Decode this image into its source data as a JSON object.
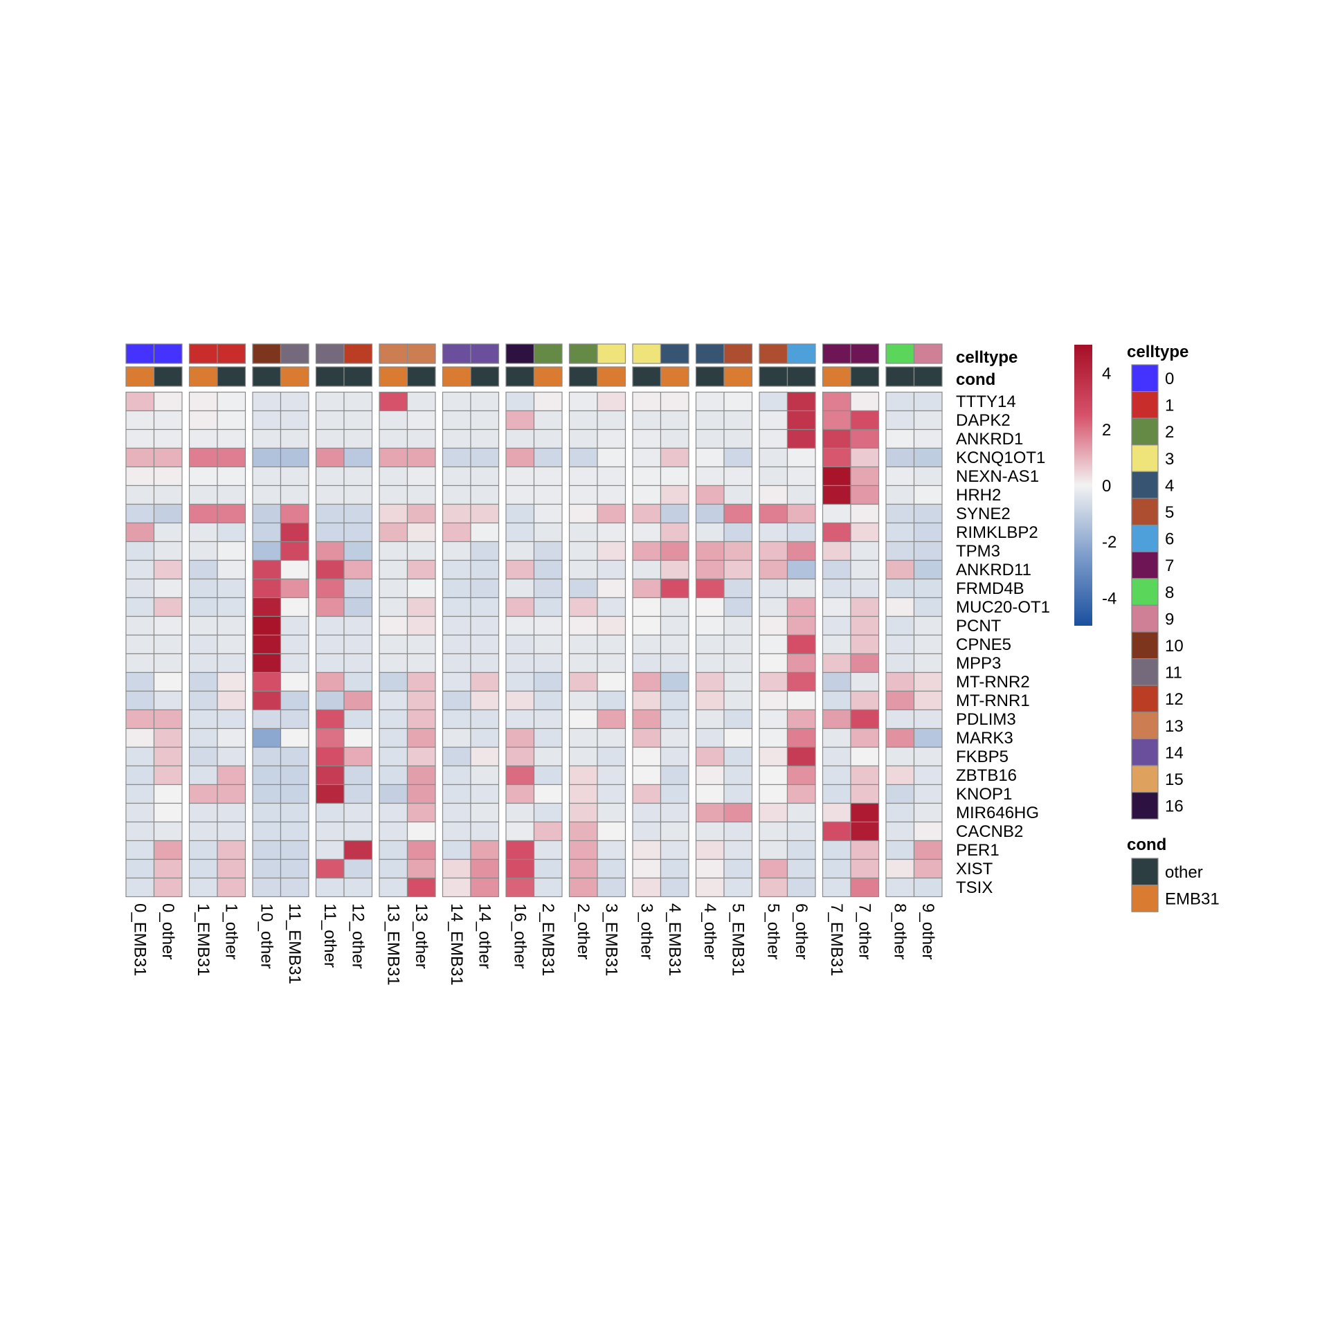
{
  "chart_data": {
    "type": "heatmap",
    "title": "",
    "columns": [
      "0_EMB31",
      "0_other",
      "1_EMB31",
      "1_other",
      "10_other",
      "11_EMB31",
      "11_other",
      "12_other",
      "13_EMB31",
      "13_other",
      "14_EMB31",
      "14_other",
      "16_other",
      "2_EMB31",
      "2_other",
      "3_EMB31",
      "3_other",
      "4_EMB31",
      "4_other",
      "5_EMB31",
      "5_other",
      "6_other",
      "7_EMB31",
      "7_other",
      "8_other",
      "9_other"
    ],
    "column_groups": [
      [
        0,
        1
      ],
      [
        2,
        3
      ],
      [
        4,
        5
      ],
      [
        6,
        7
      ],
      [
        8,
        9
      ],
      [
        10,
        11
      ],
      [
        12,
        13
      ],
      [
        14,
        15
      ],
      [
        16,
        17
      ],
      [
        18,
        19
      ],
      [
        20,
        21
      ],
      [
        22,
        23
      ],
      [
        24,
        25
      ]
    ],
    "rows": [
      "TTTY14",
      "DAPK2",
      "ANKRD1",
      "KCNQ1OT1",
      "NEXN-AS1",
      "HRH2",
      "SYNE2",
      "RIMKLBP2",
      "TPM3",
      "ANKRD11",
      "FRMD4B",
      "MUC20-OT1",
      "PCNT",
      "CPNE5",
      "MPP3",
      "MT-RNR2",
      "MT-RNR1",
      "PDLIM3",
      "MARK3",
      "FKBP5",
      "ZBTB16",
      "KNOP1",
      "MIR646HG",
      "CACNB2",
      "PER1",
      "XIST",
      "TSIX"
    ],
    "values": [
      [
        0.8,
        0.1,
        0.1,
        -0.1,
        -0.4,
        -0.4,
        -0.3,
        -0.3,
        2.5,
        -0.3,
        -0.3,
        -0.3,
        -0.5,
        0.1,
        -0.2,
        0.3,
        0.1,
        0.1,
        -0.2,
        -0.1,
        -0.5,
        3.6,
        1.8,
        0.1,
        -0.5,
        -0.5
      ],
      [
        -0.2,
        -0.2,
        0.1,
        -0.1,
        -0.4,
        -0.4,
        -0.3,
        -0.3,
        -0.3,
        -0.2,
        -0.3,
        -0.3,
        1.0,
        -0.3,
        -0.3,
        -0.3,
        -0.3,
        -0.3,
        -0.3,
        -0.3,
        -0.2,
        3.6,
        1.8,
        2.7,
        -0.4,
        -0.3
      ],
      [
        -0.2,
        -0.2,
        -0.2,
        -0.2,
        -0.3,
        -0.3,
        -0.3,
        -0.3,
        -0.3,
        -0.3,
        -0.3,
        -0.3,
        -0.3,
        -0.3,
        -0.3,
        -0.2,
        -0.2,
        -0.3,
        -0.3,
        -0.3,
        -0.2,
        3.5,
        3.0,
        2.1,
        -0.1,
        -0.2
      ],
      [
        1.0,
        1.0,
        1.8,
        1.8,
        -1.4,
        -1.4,
        1.5,
        -1.2,
        1.2,
        1.2,
        -0.8,
        -0.8,
        1.2,
        -0.8,
        -0.8,
        -0.1,
        -0.2,
        0.7,
        -0.1,
        -0.8,
        -0.3,
        -0.1,
        2.4,
        0.6,
        -1.0,
        -1.1
      ],
      [
        0.1,
        0.1,
        -0.1,
        -0.1,
        -0.3,
        -0.3,
        -0.3,
        -0.3,
        -0.3,
        -0.2,
        -0.3,
        -0.3,
        -0.2,
        -0.2,
        -0.2,
        -0.2,
        -0.1,
        -0.1,
        -0.2,
        -0.2,
        -0.3,
        -0.2,
        4.8,
        1.2,
        -0.2,
        -0.3
      ],
      [
        -0.3,
        -0.3,
        -0.3,
        -0.3,
        -0.3,
        -0.3,
        -0.3,
        -0.3,
        -0.3,
        -0.3,
        -0.3,
        -0.3,
        -0.2,
        -0.2,
        -0.2,
        -0.2,
        -0.1,
        0.4,
        1.0,
        -0.3,
        0.1,
        -0.3,
        4.7,
        1.4,
        -0.3,
        -0.1
      ],
      [
        -0.8,
        -1.0,
        1.8,
        1.8,
        -1.0,
        1.8,
        -0.8,
        -0.8,
        0.4,
        0.9,
        0.5,
        0.5,
        -0.6,
        -0.2,
        0.1,
        1.0,
        0.8,
        -1.0,
        -1.0,
        1.8,
        1.8,
        1.0,
        -0.2,
        0.1,
        -0.7,
        -0.8
      ],
      [
        1.3,
        -0.3,
        -0.3,
        -0.5,
        -0.9,
        3.3,
        -0.8,
        -0.8,
        0.9,
        0.2,
        0.8,
        -0.1,
        -0.5,
        -0.3,
        -0.3,
        -0.2,
        -0.2,
        0.7,
        -0.3,
        -0.8,
        -0.4,
        -0.6,
        2.3,
        0.4,
        -0.6,
        -0.8
      ],
      [
        -0.5,
        -0.3,
        -0.3,
        -0.1,
        -1.4,
        2.8,
        1.5,
        -1.1,
        -0.3,
        -0.3,
        -0.3,
        -0.7,
        -0.3,
        -0.7,
        -0.3,
        0.3,
        1.1,
        1.5,
        1.2,
        0.9,
        0.8,
        1.6,
        0.5,
        -0.3,
        -0.7,
        -0.8
      ],
      [
        -0.4,
        0.6,
        -0.8,
        -0.2,
        2.8,
        0.0,
        2.8,
        1.1,
        -0.3,
        0.8,
        -0.5,
        -0.6,
        0.8,
        -0.8,
        -0.3,
        -0.4,
        -0.3,
        0.5,
        1.1,
        0.6,
        1.0,
        -1.4,
        -0.8,
        -0.3,
        0.9,
        -1.1
      ],
      [
        -0.4,
        -0.2,
        -0.6,
        -0.5,
        2.8,
        1.5,
        2.0,
        -0.8,
        -0.3,
        -0.1,
        -0.6,
        -0.7,
        -0.3,
        -0.7,
        -0.8,
        0.1,
        1.0,
        2.6,
        2.4,
        -0.7,
        -0.4,
        -0.3,
        -0.5,
        -0.4,
        -0.6,
        -0.6
      ],
      [
        -0.5,
        0.7,
        -0.6,
        -0.5,
        4.3,
        0.0,
        1.5,
        -1.0,
        -0.3,
        0.5,
        -0.5,
        -0.5,
        0.8,
        -0.6,
        0.6,
        -0.4,
        0.0,
        -0.3,
        0.0,
        -0.8,
        -0.3,
        1.1,
        -0.2,
        0.7,
        0.1,
        -0.6
      ],
      [
        -0.3,
        -0.2,
        -0.3,
        -0.3,
        4.8,
        -0.4,
        -0.4,
        -0.4,
        0.1,
        0.3,
        -0.4,
        -0.4,
        -0.2,
        -0.2,
        0.1,
        0.2,
        0.0,
        -0.3,
        -0.1,
        -0.3,
        0.1,
        1.1,
        -0.4,
        0.7,
        -0.5,
        -0.3
      ],
      [
        -0.3,
        -0.3,
        -0.4,
        -0.3,
        4.7,
        -0.4,
        -0.4,
        -0.4,
        -0.3,
        -0.3,
        -0.4,
        -0.4,
        -0.4,
        -0.3,
        -0.3,
        -0.3,
        -0.3,
        -0.3,
        -0.3,
        -0.3,
        -0.1,
        2.6,
        -0.3,
        0.7,
        -0.4,
        -0.3
      ],
      [
        -0.3,
        -0.3,
        -0.4,
        -0.4,
        4.7,
        -0.4,
        -0.4,
        -0.4,
        -0.3,
        -0.3,
        -0.4,
        -0.4,
        -0.4,
        -0.4,
        -0.3,
        -0.3,
        -0.4,
        -0.4,
        -0.3,
        -0.3,
        0.0,
        1.4,
        0.7,
        1.6,
        -0.4,
        -0.3
      ],
      [
        -0.8,
        0.0,
        -0.8,
        0.2,
        2.6,
        0.0,
        1.2,
        -0.6,
        -0.9,
        0.8,
        -0.4,
        0.7,
        -0.5,
        -0.8,
        0.7,
        0.0,
        1.1,
        -1.1,
        0.6,
        -0.3,
        0.6,
        2.3,
        -1.0,
        -0.3,
        0.8,
        0.4
      ],
      [
        -0.8,
        -0.4,
        -0.7,
        0.3,
        3.3,
        -0.9,
        -1.0,
        1.3,
        -0.4,
        0.7,
        -0.8,
        0.3,
        0.3,
        -0.6,
        -0.3,
        -0.6,
        0.4,
        -0.6,
        0.4,
        -0.3,
        0.1,
        0.0,
        -0.6,
        0.7,
        1.4,
        0.4
      ],
      [
        1.0,
        1.0,
        -0.5,
        -0.5,
        -0.7,
        -0.7,
        2.5,
        -0.6,
        -0.5,
        0.8,
        -0.5,
        -0.5,
        -0.4,
        -0.4,
        0.0,
        1.2,
        1.2,
        -0.5,
        -0.3,
        -0.6,
        -0.2,
        1.1,
        1.3,
        2.7,
        -0.4,
        -0.4
      ],
      [
        0.1,
        0.7,
        -0.5,
        -0.2,
        -2.2,
        0.0,
        2.0,
        0.0,
        -0.5,
        1.2,
        -0.3,
        -0.5,
        1.0,
        -0.5,
        -0.3,
        -0.3,
        0.8,
        -0.3,
        -0.4,
        0.0,
        -0.1,
        1.8,
        -0.3,
        1.0,
        1.5,
        -1.3
      ],
      [
        -0.5,
        0.7,
        -0.7,
        -0.4,
        -0.8,
        -0.8,
        2.6,
        1.1,
        -0.5,
        0.6,
        -0.8,
        0.2,
        0.8,
        -0.3,
        -0.3,
        -0.5,
        0.0,
        -0.4,
        0.8,
        -0.6,
        0.2,
        3.3,
        -0.4,
        0.0,
        -0.3,
        -0.3
      ],
      [
        -0.6,
        0.7,
        -0.5,
        1.0,
        -0.9,
        -0.9,
        3.3,
        -0.8,
        -0.6,
        1.3,
        -0.5,
        -0.3,
        2.1,
        -0.6,
        0.4,
        -0.4,
        0.0,
        -0.7,
        0.1,
        -0.5,
        0.0,
        1.5,
        -0.5,
        0.7,
        0.4,
        -0.4
      ],
      [
        -0.5,
        0.0,
        1.0,
        1.0,
        -0.9,
        -0.9,
        4.1,
        -0.8,
        -1.0,
        1.3,
        -0.5,
        -0.4,
        1.0,
        0.0,
        0.4,
        -0.4,
        0.7,
        -0.6,
        0.0,
        -0.5,
        0.0,
        1.0,
        -0.6,
        0.7,
        -0.8,
        -0.4
      ],
      [
        -0.4,
        0.0,
        -0.4,
        -0.4,
        -0.6,
        -0.6,
        -0.5,
        -0.4,
        -0.4,
        1.0,
        -0.4,
        -0.3,
        -0.3,
        -0.5,
        0.5,
        -0.3,
        -0.4,
        -0.4,
        1.2,
        1.5,
        0.3,
        -0.3,
        0.3,
        4.6,
        -0.5,
        -0.3
      ],
      [
        -0.4,
        -0.3,
        -0.4,
        -0.4,
        -0.6,
        -0.6,
        -0.4,
        -0.4,
        -0.4,
        0.0,
        -0.4,
        -0.4,
        -0.2,
        0.8,
        1.0,
        0.0,
        -0.4,
        -0.3,
        -0.3,
        -0.4,
        -0.3,
        -0.4,
        2.7,
        4.5,
        -0.4,
        0.1
      ],
      [
        -0.5,
        1.2,
        -0.6,
        0.8,
        -0.8,
        -0.8,
        -0.4,
        3.6,
        -0.6,
        1.5,
        -0.6,
        1.2,
        2.6,
        -0.4,
        1.1,
        -0.4,
        0.2,
        -0.4,
        0.3,
        -0.4,
        -0.3,
        -0.6,
        -0.6,
        0.8,
        -0.6,
        1.3
      ],
      [
        -0.6,
        0.8,
        -0.6,
        0.8,
        -0.8,
        -0.8,
        2.4,
        -0.8,
        -0.6,
        1.2,
        0.4,
        1.5,
        2.6,
        -0.6,
        1.1,
        -0.6,
        0.1,
        -0.6,
        0.1,
        -0.6,
        1.1,
        -0.6,
        -0.6,
        0.8,
        0.2,
        1.0
      ],
      [
        -0.5,
        0.8,
        -0.5,
        0.8,
        -0.7,
        -0.7,
        -0.5,
        -0.5,
        -0.5,
        2.6,
        0.3,
        1.5,
        2.2,
        -0.5,
        1.2,
        -0.7,
        0.3,
        -0.7,
        0.2,
        -0.5,
        0.7,
        -0.7,
        -0.5,
        1.8,
        -0.5,
        -0.6
      ]
    ],
    "annotations": {
      "celltype": [
        "0",
        "0",
        "1",
        "1",
        "10",
        "11",
        "11",
        "12",
        "13",
        "13",
        "14",
        "14",
        "16",
        "2",
        "2",
        "3",
        "3",
        "4",
        "4",
        "5",
        "5",
        "6",
        "7",
        "7",
        "8",
        "9"
      ],
      "cond": [
        "EMB31",
        "other",
        "EMB31",
        "other",
        "other",
        "EMB31",
        "other",
        "other",
        "EMB31",
        "other",
        "EMB31",
        "other",
        "other",
        "EMB31",
        "other",
        "EMB31",
        "other",
        "EMB31",
        "other",
        "EMB31",
        "other",
        "other",
        "EMB31",
        "other",
        "other",
        "other"
      ]
    },
    "annotation_labels": {
      "celltype": "celltype",
      "cond": "cond"
    },
    "colorbar": {
      "range": [
        -5,
        5
      ],
      "ticks": [
        4,
        2,
        0,
        -2,
        -4
      ],
      "tick_labels": [
        "4",
        "2",
        "0",
        "-2",
        "-4"
      ],
      "stops": [
        "#A50F26",
        "#D6516A",
        "#F2F2F2",
        "#7E9DCB",
        "#1B509E"
      ]
    },
    "legends": {
      "celltype": {
        "title": "celltype",
        "items": [
          {
            "label": "0",
            "color": "#4433FF"
          },
          {
            "label": "1",
            "color": "#C82D2C"
          },
          {
            "label": "2",
            "color": "#648A45"
          },
          {
            "label": "3",
            "color": "#EEE47A"
          },
          {
            "label": "4",
            "color": "#375573"
          },
          {
            "label": "5",
            "color": "#AC4E2F"
          },
          {
            "label": "6",
            "color": "#4EA0DB"
          },
          {
            "label": "7",
            "color": "#6D1555"
          },
          {
            "label": "8",
            "color": "#5AD65A"
          },
          {
            "label": "9",
            "color": "#CF8096"
          },
          {
            "label": "10",
            "color": "#7E351E"
          },
          {
            "label": "11",
            "color": "#746A7B"
          },
          {
            "label": "12",
            "color": "#BB3D23"
          },
          {
            "label": "13",
            "color": "#CC7D51"
          },
          {
            "label": "14",
            "color": "#6A4F9D"
          },
          {
            "label": "15",
            "color": "#DEA25E"
          },
          {
            "label": "16",
            "color": "#2D1241"
          }
        ]
      },
      "cond": {
        "title": "cond",
        "items": [
          {
            "label": "other",
            "color": "#2D3E42"
          },
          {
            "label": "EMB31",
            "color": "#D97C32"
          }
        ]
      }
    }
  }
}
